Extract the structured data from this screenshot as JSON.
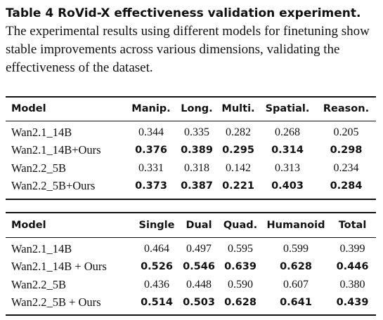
{
  "caption": {
    "label": "Table 4  RoVid-X effectiveness validation experiment.",
    "text": "The experimental results using different models for finetuning show stable improvements across various dimensions, validating the effectiveness of the dataset."
  },
  "table1": {
    "headers": [
      "Model",
      "Manip.",
      "Long.",
      "Multi.",
      "Spatial.",
      "Reason."
    ],
    "rows": [
      {
        "model": "Wan2.1_14B",
        "values": [
          "0.344",
          "0.335",
          "0.282",
          "0.268",
          "0.205"
        ],
        "bold": false
      },
      {
        "model": "Wan2.1_14B+Ours",
        "values": [
          "0.376",
          "0.389",
          "0.295",
          "0.314",
          "0.298"
        ],
        "bold": true
      },
      {
        "model": "Wan2.2_5B",
        "values": [
          "0.331",
          "0.318",
          "0.142",
          "0.313",
          "0.234"
        ],
        "bold": false
      },
      {
        "model": "Wan2.2_5B+Ours",
        "values": [
          "0.373",
          "0.387",
          "0.221",
          "0.403",
          "0.284"
        ],
        "bold": true
      }
    ]
  },
  "table2": {
    "headers": [
      "Model",
      "Single",
      "Dual",
      "Quad.",
      "Humanoid",
      "Total"
    ],
    "rows": [
      {
        "model": "Wan2.1_14B",
        "values": [
          "0.464",
          "0.497",
          "0.595",
          "0.599",
          "0.399"
        ],
        "bold": false
      },
      {
        "model": "Wan2.1_14B + Ours",
        "values": [
          "0.526",
          "0.546",
          "0.639",
          "0.628",
          "0.446"
        ],
        "bold": true
      },
      {
        "model": "Wan2.2_5B",
        "values": [
          "0.436",
          "0.448",
          "0.590",
          "0.607",
          "0.380"
        ],
        "bold": false
      },
      {
        "model": "Wan2.2_5B + Ours",
        "values": [
          "0.514",
          "0.503",
          "0.628",
          "0.641",
          "0.439"
        ],
        "bold": true
      }
    ]
  }
}
